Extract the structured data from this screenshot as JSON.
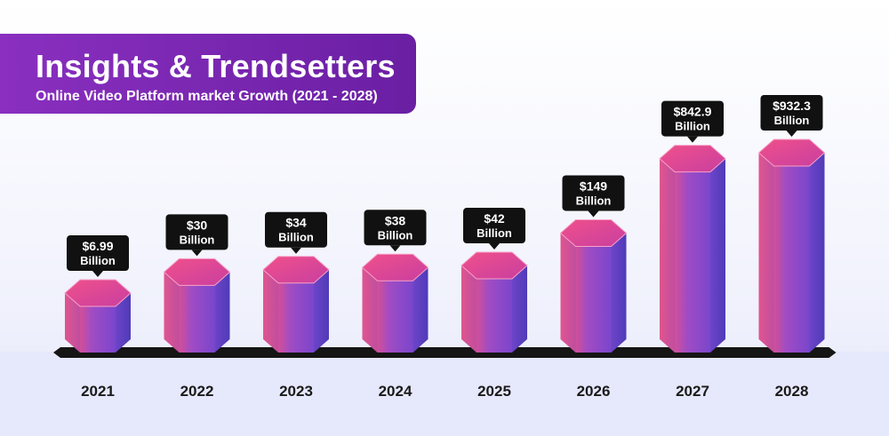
{
  "header": {
    "title": "Insights & Trendsetters",
    "subtitle": "Online Video Platform market Growth (2021 - 2028)"
  },
  "chart_data": {
    "type": "bar",
    "title": "Insights & Trendsetters",
    "subtitle": "Online Video Platform market Growth (2021 - 2028)",
    "categories": [
      "2021",
      "2022",
      "2023",
      "2024",
      "2025",
      "2026",
      "2027",
      "2028"
    ],
    "values": [
      6.99,
      30,
      34,
      38,
      42,
      149,
      842.9,
      932.3
    ],
    "value_labels": [
      [
        "$6.99",
        "Billion"
      ],
      [
        "$30",
        "Billion"
      ],
      [
        "$34",
        "Billion"
      ],
      [
        "$38",
        "Billion"
      ],
      [
        "$42",
        "Billion"
      ],
      [
        "$149",
        "Billion"
      ],
      [
        "$842.9",
        "Billion"
      ],
      [
        "$932.3",
        "Billion"
      ]
    ],
    "xlabel": "",
    "ylabel": "",
    "unit": "Billion USD",
    "colors": {
      "bar_top": "#e8508e",
      "bar_left": "#c24c9b",
      "bar_front": "#8a4fd0",
      "bar_right": "#5b3fc2",
      "label_bg": "#111111",
      "label_text": "#ffffff",
      "baseline": "#1a1a1a",
      "year_text": "#1a1a1a"
    }
  }
}
